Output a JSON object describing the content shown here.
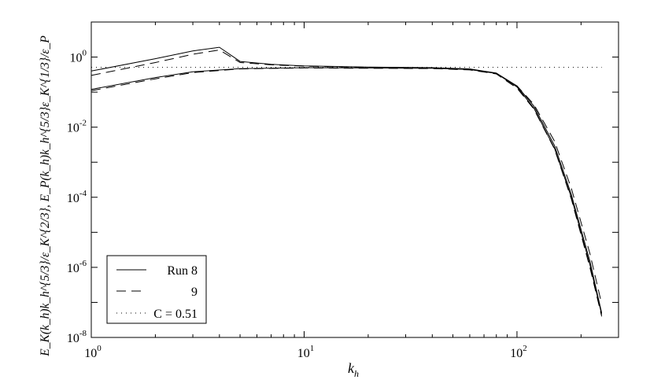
{
  "chart_data": {
    "type": "line",
    "title": "",
    "xscale": "log",
    "yscale": "log",
    "xlim": [
      1,
      300
    ],
    "ylim": [
      1e-08,
      10
    ],
    "grid": false,
    "x_ticks": [
      {
        "value": 1,
        "base": "10",
        "exp": "0"
      },
      {
        "value": 10,
        "base": "10",
        "exp": "1"
      },
      {
        "value": 100,
        "base": "10",
        "exp": "2"
      }
    ],
    "y_ticks": [
      {
        "value": 1,
        "base": "10",
        "exp": "0"
      },
      {
        "value": 0.01,
        "base": "10",
        "exp": "-2"
      },
      {
        "value": 0.0001,
        "base": "10",
        "exp": "-4"
      },
      {
        "value": 1e-06,
        "base": "10",
        "exp": "-6"
      },
      {
        "value": 1e-08,
        "base": "10",
        "exp": "-8"
      }
    ],
    "xlabel": {
      "main": "k",
      "sub": "h"
    },
    "ylabel": "E_K(k_h)k_h^{5/3}/ε_K^{2/3}, E_P(k_h)k_h^{5/3}ε_K^{1/3}/ε_P",
    "legend": {
      "position": "bottom-left",
      "entries": [
        {
          "label": "Run 8",
          "style": "solid"
        },
        {
          "label": "9",
          "style": "dashed"
        },
        {
          "label": "C = 0.51",
          "style": "dotted"
        }
      ]
    },
    "series": [
      {
        "name": "Run 8",
        "style": "solid",
        "x": [
          1,
          2,
          3,
          4,
          5,
          7,
          10,
          20,
          40,
          60,
          80,
          100,
          120,
          150,
          180,
          220,
          250
        ],
        "y": [
          0.4,
          0.9,
          1.5,
          1.9,
          0.75,
          0.62,
          0.56,
          0.52,
          0.5,
          0.46,
          0.35,
          0.15,
          0.04,
          0.003,
          0.00012,
          1.5e-06,
          5e-08
        ]
      },
      {
        "name": "Run 8",
        "style": "solid",
        "x": [
          1,
          2,
          3,
          5,
          10,
          20,
          40,
          60,
          80,
          100,
          120,
          150,
          180,
          220,
          250
        ],
        "y": [
          0.12,
          0.26,
          0.38,
          0.47,
          0.5,
          0.49,
          0.48,
          0.44,
          0.34,
          0.14,
          0.035,
          0.0025,
          0.0001,
          1.2e-06,
          4.5e-08
        ]
      },
      {
        "name": "9",
        "style": "dashed",
        "x": [
          1,
          2,
          3,
          4,
          5,
          7,
          10,
          20,
          40,
          60,
          80,
          100,
          120,
          150,
          180,
          220,
          250
        ],
        "y": [
          0.3,
          0.7,
          1.2,
          1.6,
          0.7,
          0.6,
          0.55,
          0.51,
          0.49,
          0.45,
          0.34,
          0.15,
          0.045,
          0.004,
          0.00018,
          2.5e-06,
          9e-08
        ]
      },
      {
        "name": "9",
        "style": "dashed",
        "x": [
          1,
          2,
          3,
          5,
          10,
          20,
          40,
          60,
          80,
          100,
          120,
          150,
          180,
          220,
          250
        ],
        "y": [
          0.11,
          0.24,
          0.36,
          0.46,
          0.49,
          0.48,
          0.47,
          0.43,
          0.33,
          0.13,
          0.033,
          0.0024,
          9e-05,
          1e-06,
          4e-08
        ]
      },
      {
        "name": "C = 0.51",
        "style": "dotted",
        "x": [
          1,
          250
        ],
        "y": [
          0.51,
          0.51
        ]
      }
    ]
  }
}
